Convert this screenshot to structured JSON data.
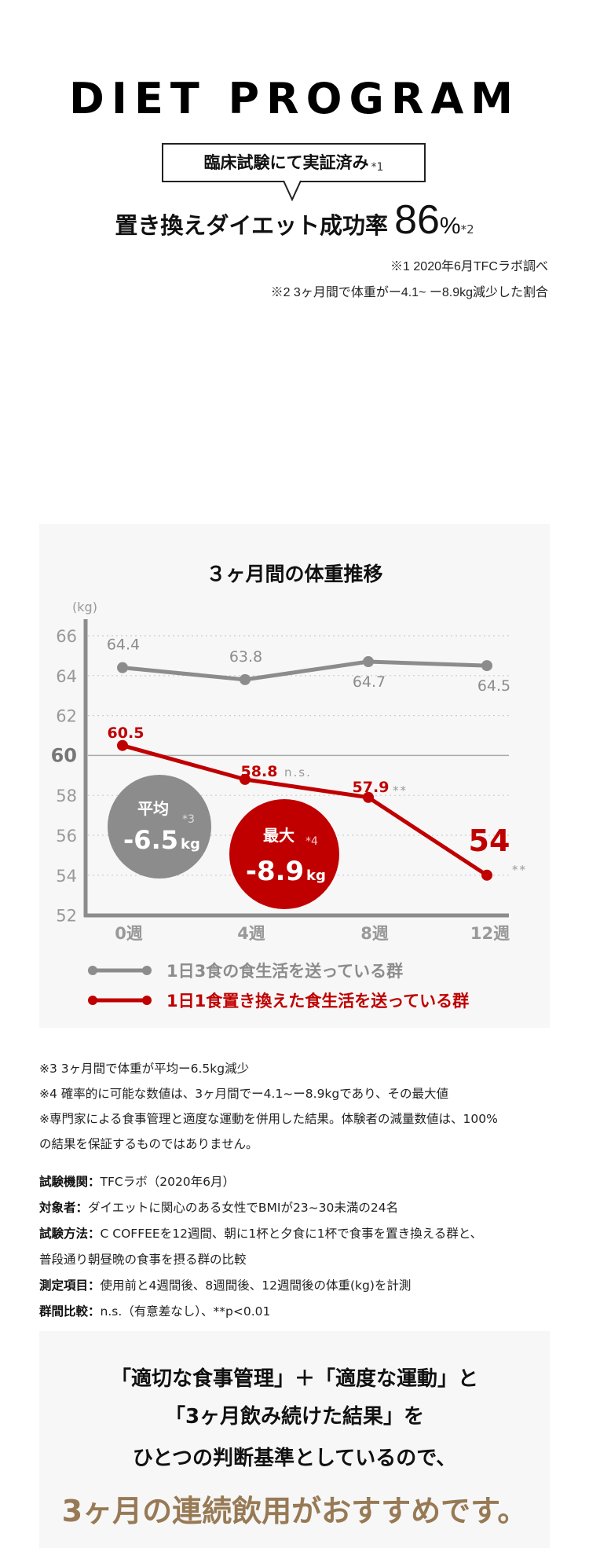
{
  "header": {
    "title": "DIET PROGRAM",
    "bubble_text": "臨床試験にて実証済み",
    "bubble_note": "*1",
    "headline_text": "置き換えダイエット成功率",
    "headline_value": "86",
    "headline_unit": "%",
    "headline_note": "*2",
    "notes": [
      "※1 2020年6月TFCラボ調べ",
      "※2 3ヶ月間で体重がー4.1~ ー8.9kg減少した割合"
    ]
  },
  "chart_data": {
    "type": "line",
    "title": "３ヶ月間の体重推移",
    "ylabel": "(kg)",
    "ylim": [
      52,
      67
    ],
    "yticks": [
      "66",
      "64",
      "62",
      "60",
      "58",
      "56",
      "54",
      "52"
    ],
    "highlight_tick": "60",
    "categories": [
      "0週",
      "4週",
      "8週",
      "12週"
    ],
    "grid": "dotted horizontal",
    "legend_position": "bottom",
    "series": [
      {
        "name": "1日3食の食生活を送っている群",
        "color": "#8c8c8c",
        "values": [
          64.4,
          63.8,
          64.7,
          64.5
        ],
        "labels": [
          "64.4",
          "63.8",
          "64.7",
          "64.5"
        ]
      },
      {
        "name": "1日1食置き換えた食生活を送っている群",
        "color": "#c00000",
        "values": [
          60.5,
          58.8,
          57.9,
          54
        ],
        "labels": [
          "60.5",
          "58.8",
          "57.9",
          "54"
        ]
      }
    ],
    "annotations": {
      "ns": "n.s.",
      "sig_8w": "**",
      "sig_12w": "**",
      "avg_label": "平均",
      "avg_note": "*3",
      "avg_value": "-6.5",
      "avg_unit": "kg",
      "max_label": "最大",
      "max_note": "*4",
      "max_value": "-8.9",
      "max_unit": "kg"
    },
    "colors": {
      "gray": "#8c8c8c",
      "red": "#c00000"
    }
  },
  "footnotes": [
    "※3 3ヶ月間で体重が平均ー6.5kg減少",
    "※4 確率的に可能な数値は、3ヶ月間でー4.1~ー8.9kgであり、その最大値",
    "※専門家による食事管理と適度な運動を併用した結果。体験者の減量数値は、100%",
    "の結果を保証するものではありません。"
  ],
  "study": [
    {
      "label": "試験機関：",
      "value": "TFCラボ（2020年6月）"
    },
    {
      "label": "対象者：",
      "value": "ダイエットに関心のある女性でBMIが23~30未満の24名"
    },
    {
      "label": "試験方法：",
      "value": "C COFFEEを12週間、朝に1杯と夕食に1杯で食事を置き換える群と、"
    },
    {
      "label": "",
      "value": "普段通り朝昼晩の食事を摂る群の比較"
    },
    {
      "label": "測定項目：",
      "value": "使用前と4週間後、8週間後、12週間後の体重(kg)を計測"
    },
    {
      "label": "群間比較：",
      "value": "n.s.（有意差なし）、**p<0.01"
    }
  ],
  "conclusion": {
    "lines": [
      "「適切な食事管理」＋「適度な運動」と",
      "「3ヶ月飲み続けた結果」を",
      "ひとつの判断基準としているので、"
    ],
    "highlight": "3ヶ月の連続飲用がおすすめです。",
    "highlight_color": "#977a55"
  }
}
